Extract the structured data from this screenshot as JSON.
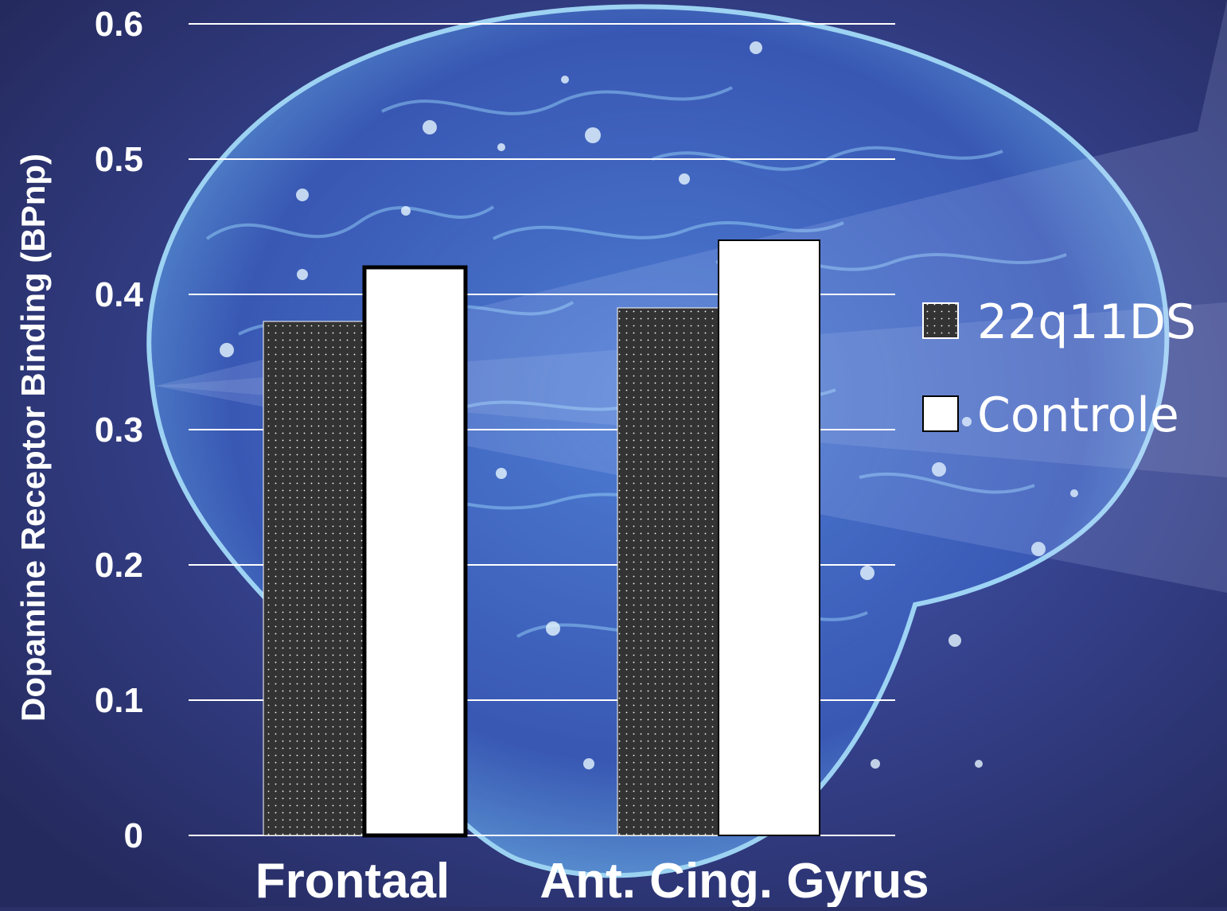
{
  "chart_data": {
    "type": "bar",
    "ylabel": "Dopamine Receptor Binding (BPnp)",
    "ylim": [
      0,
      0.6
    ],
    "yticks": [
      "0",
      "0.1",
      "0.2",
      "0.3",
      "0.4",
      "0.5",
      "0.6"
    ],
    "grid": true,
    "legend_position": "right",
    "categories": [
      "Frontaal",
      "Ant. Cing. Gyrus"
    ],
    "series": [
      {
        "name": "22q11DS",
        "values": [
          0.38,
          0.39
        ],
        "color": "#333333",
        "pattern": "dotted"
      },
      {
        "name": "Controle",
        "values": [
          0.42,
          0.44
        ],
        "color": "#ffffff"
      }
    ]
  },
  "colors": {
    "background": "#2b3168",
    "brain_glow": "#6fb8f0",
    "gridline": "#ffffff",
    "text": "#ffffff"
  },
  "background_image": "glowing-brain-illustration"
}
